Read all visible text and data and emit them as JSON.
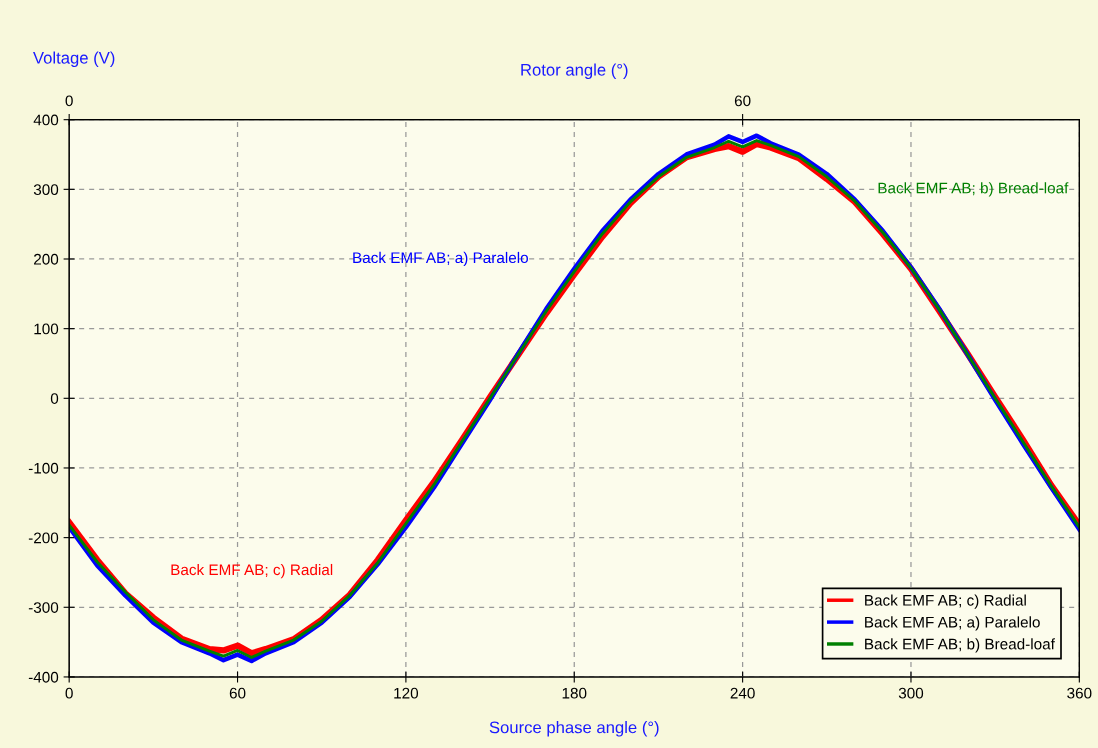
{
  "chart_data": {
    "type": "line",
    "xlabel": "Source phase angle (°)",
    "ylabel": "Voltage (V)",
    "x2label": "Rotor angle (°)",
    "x": [
      0,
      10,
      20,
      30,
      40,
      50,
      55,
      60,
      65,
      70,
      80,
      90,
      100,
      110,
      120,
      130,
      140,
      150,
      160,
      170,
      180,
      190,
      200,
      210,
      220,
      230,
      235,
      240,
      245,
      250,
      260,
      270,
      280,
      290,
      300,
      310,
      320,
      330,
      340,
      350,
      360
    ],
    "series": [
      {
        "name": "Back EMF AB; c) Radial",
        "color": "#ff0000",
        "values": [
          -178,
          -232,
          -280,
          -315,
          -345,
          -360,
          -362,
          -355,
          -366,
          -360,
          -346,
          -318,
          -282,
          -232,
          -175,
          -120,
          -60,
          2,
          62,
          122,
          178,
          232,
          280,
          318,
          346,
          358,
          362,
          354,
          365,
          360,
          345,
          315,
          282,
          236,
          186,
          126,
          65,
          2,
          -60,
          -125,
          -182
        ]
      },
      {
        "name": "Back EMF AB; a) Paralelo",
        "color": "#0000ff",
        "values": [
          -185,
          -240,
          -283,
          -322,
          -350,
          -366,
          -376,
          -368,
          -377,
          -366,
          -350,
          -322,
          -285,
          -238,
          -185,
          -128,
          -65,
          -2,
          64,
          128,
          186,
          240,
          285,
          322,
          350,
          364,
          376,
          368,
          377,
          366,
          350,
          322,
          285,
          240,
          188,
          129,
          64,
          -2,
          -66,
          -128,
          -188
        ]
      },
      {
        "name": "Back EMF AB; b) Bread-loaf",
        "color": "#008000",
        "values": [
          -182,
          -235,
          -278,
          -318,
          -347,
          -363,
          -370,
          -362,
          -372,
          -363,
          -347,
          -320,
          -283,
          -236,
          -180,
          -124,
          -62,
          0,
          63,
          125,
          182,
          236,
          282,
          318,
          346,
          360,
          369,
          361,
          370,
          363,
          347,
          318,
          283,
          238,
          187,
          128,
          64,
          0,
          -63,
          -126,
          -185
        ]
      }
    ],
    "xlim": [
      0,
      360
    ],
    "xticks": [
      0,
      60,
      120,
      180,
      240,
      300,
      360
    ],
    "x2lim": [
      0,
      90
    ],
    "x2ticks": [
      0,
      60
    ],
    "ylim": [
      -400,
      400
    ],
    "yticks": [
      -400,
      -300,
      -200,
      -100,
      0,
      100,
      200,
      300,
      400
    ],
    "annotations": [
      "Back EMF AB; c) Radial",
      "Back EMF AB; a) Paralelo",
      "Back EMF AB; b) Bread-loaf"
    ],
    "grid": true,
    "legend": "bottom right",
    "line_style": "solid",
    "marker": "none"
  }
}
